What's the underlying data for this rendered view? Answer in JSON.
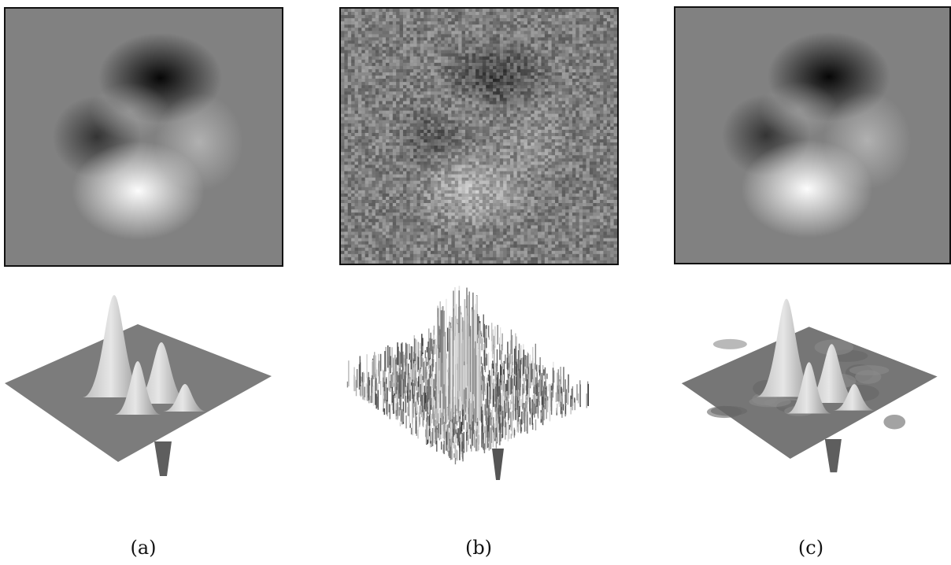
{
  "figure": {
    "panels": [
      {
        "id": "a",
        "caption": "(a)",
        "variant": "clean"
      },
      {
        "id": "b",
        "caption": "(b)",
        "variant": "noisy"
      },
      {
        "id": "c",
        "caption": "(c)",
        "variant": "denoised"
      }
    ]
  },
  "colors": {
    "background_gray": "#808080",
    "frame": "#111111",
    "surface_light": "#d8d8d8",
    "surface_dark": "#6e6e6e"
  }
}
